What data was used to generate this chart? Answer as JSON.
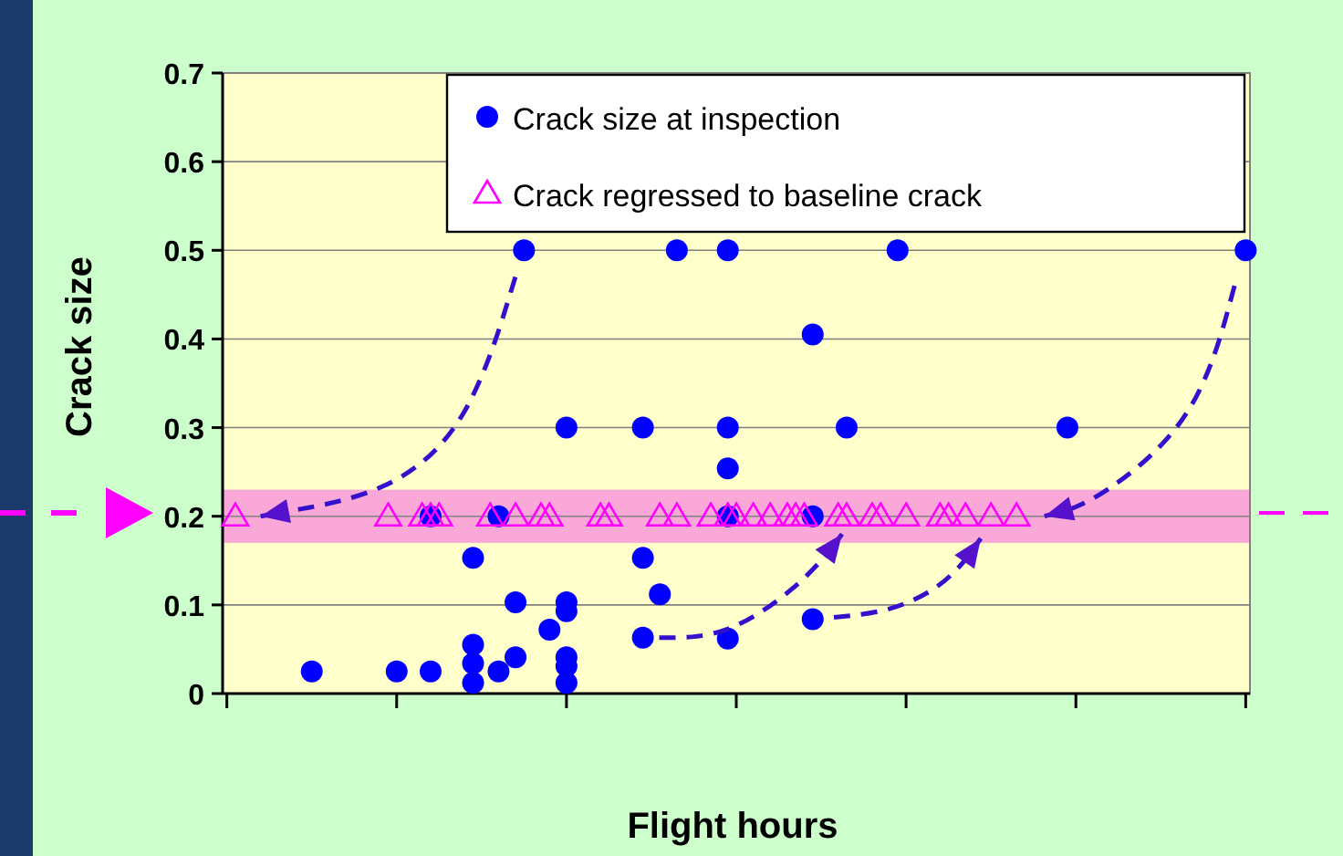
{
  "chart_data": {
    "type": "scatter",
    "xlabel": "Flight hours",
    "ylabel": "Crack size",
    "categories": [
      null,
      null,
      null,
      null,
      null,
      null,
      null,
      null,
      null,
      null,
      null,
      null,
      null,
      null,
      null,
      null,
      null,
      null,
      null,
      null,
      null,
      null,
      null,
      null,
      null,
      null,
      null,
      null,
      null,
      null,
      null,
      null,
      null,
      null,
      null,
      null,
      null,
      null,
      null,
      null,
      null,
      null,
      null,
      null,
      null,
      null,
      null,
      null,
      null,
      null,
      null,
      null,
      null,
      null,
      null,
      null,
      null,
      null,
      null,
      null,
      null,
      null,
      null,
      null,
      null,
      null,
      null,
      null,
      null,
      null,
      null,
      null,
      null,
      null,
      null,
      null,
      null,
      null,
      null,
      null,
      null,
      null,
      null,
      null,
      null,
      null,
      null,
      null,
      null,
      null,
      null,
      null,
      null,
      null,
      null,
      null,
      null,
      null,
      null,
      null,
      null,
      null,
      null,
      null,
      null,
      null,
      null,
      null,
      null,
      null,
      null,
      null,
      null,
      null,
      null,
      null,
      null,
      null,
      null,
      null,
      null
    ],
    "ylim": [
      0,
      0.7
    ],
    "yticks": [
      0,
      0.1,
      0.2,
      0.3,
      0.4,
      0.5,
      0.6,
      0.7
    ],
    "grid": "y",
    "legend": "top right",
    "bands": [
      {
        "axis": "y",
        "from": 0.17,
        "to": 0.23,
        "color": "#f9a8d8"
      }
    ],
    "series": [
      {
        "name": "Crack size at inspection",
        "color": "#0000ff",
        "marker": "circle",
        "values": [
          null,
          null,
          null,
          null,
          null,
          null,
          null,
          null,
          null,
          null,
          0.025,
          null,
          null,
          null,
          null,
          null,
          null,
          null,
          null,
          null,
          0.025,
          null,
          null,
          null,
          0.025,
          null,
          null,
          null,
          null,
          0.153,
          null,
          null,
          0.025,
          null,
          0.103,
          0.5,
          null,
          null,
          0.072,
          null,
          0.3,
          null,
          null,
          null,
          null,
          null,
          null,
          null,
          null,
          0.3,
          null,
          0.112,
          null,
          0.5,
          null,
          null,
          null,
          null,
          null,
          0.5,
          null,
          null,
          null,
          null,
          null,
          null,
          null,
          null,
          null,
          0.405,
          null,
          null,
          null,
          0.3,
          null,
          null,
          null,
          null,
          null,
          0.5,
          null,
          null,
          null,
          null,
          null,
          null,
          null,
          null,
          null,
          null,
          null,
          null,
          null,
          null,
          null,
          null,
          null,
          null,
          null,
          0.3,
          null,
          null,
          null,
          null,
          null,
          null,
          null,
          null,
          null,
          null,
          null,
          null,
          null,
          null,
          null,
          null,
          null,
          null,
          null,
          null,
          0.5
        ]
      },
      {
        "color": "#0000ff",
        "marker": "circle",
        "values": [
          null,
          null,
          null,
          null,
          null,
          null,
          null,
          null,
          null,
          null,
          null,
          null,
          null,
          null,
          null,
          null,
          null,
          null,
          null,
          null,
          null,
          null,
          null,
          null,
          0.2,
          null,
          null,
          null,
          null,
          0.055,
          null,
          null,
          0.2,
          null,
          0.041,
          null,
          null,
          null,
          null,
          null,
          0.103,
          null,
          null,
          null,
          null,
          null,
          null,
          null,
          null,
          0.153,
          null,
          null,
          null,
          null,
          null,
          null,
          null,
          null,
          null,
          0.3,
          null,
          null,
          null,
          null,
          null,
          null,
          null,
          null,
          null,
          0.084,
          null,
          null,
          null,
          null,
          null,
          null,
          null,
          null,
          null,
          null,
          null,
          null,
          null,
          null,
          null,
          null,
          null,
          null,
          null,
          null,
          null,
          null,
          null,
          null,
          null,
          null,
          null,
          null,
          null,
          null,
          null,
          null,
          null,
          null,
          null,
          null,
          null,
          null,
          null,
          null,
          null,
          null,
          null,
          null,
          null,
          null,
          null,
          null,
          null,
          null,
          null
        ]
      },
      {
        "color": "#0000ff",
        "marker": "circle",
        "values": [
          null,
          null,
          null,
          null,
          null,
          null,
          null,
          null,
          null,
          null,
          null,
          null,
          null,
          null,
          null,
          null,
          null,
          null,
          null,
          null,
          null,
          null,
          null,
          null,
          null,
          null,
          null,
          null,
          null,
          0.034,
          null,
          null,
          null,
          null,
          null,
          null,
          null,
          null,
          null,
          null,
          0.093,
          null,
          null,
          null,
          null,
          null,
          null,
          null,
          null,
          0.063,
          null,
          null,
          null,
          null,
          null,
          null,
          null,
          null,
          null,
          0.254,
          null,
          null,
          null,
          null,
          null,
          null,
          null,
          null,
          null,
          0.2,
          null,
          null,
          null,
          null,
          null,
          null,
          null,
          null,
          null,
          null,
          null,
          null,
          null,
          null,
          null,
          null,
          null,
          null,
          null,
          null,
          null,
          null,
          null,
          null,
          null,
          null,
          null,
          null,
          null,
          null,
          null,
          null,
          null,
          null,
          null,
          null,
          null,
          null,
          null,
          null,
          null,
          null,
          null,
          null,
          null,
          null,
          null,
          null,
          null,
          null,
          null
        ]
      },
      {
        "color": "#0000ff",
        "marker": "circle",
        "values": [
          null,
          null,
          null,
          null,
          null,
          null,
          null,
          null,
          null,
          null,
          null,
          null,
          null,
          null,
          null,
          null,
          null,
          null,
          null,
          null,
          null,
          null,
          null,
          null,
          null,
          null,
          null,
          null,
          null,
          0.012,
          null,
          null,
          null,
          null,
          null,
          null,
          null,
          null,
          null,
          null,
          0.041,
          null,
          null,
          null,
          null,
          null,
          null,
          null,
          null,
          null,
          null,
          null,
          null,
          null,
          null,
          null,
          null,
          null,
          null,
          0.062,
          null,
          null,
          null,
          null,
          null,
          null,
          null,
          null,
          null,
          null,
          null,
          null,
          null,
          null,
          null,
          null,
          null,
          null,
          null,
          null,
          null,
          null,
          null,
          null,
          null,
          null,
          null,
          null,
          null,
          null,
          null,
          null,
          null,
          null,
          null,
          null,
          null,
          null,
          null,
          null,
          null,
          null,
          null,
          null,
          null,
          null,
          null,
          null,
          null,
          null,
          null,
          null,
          null,
          null,
          null,
          null,
          null,
          null,
          null,
          null,
          null
        ]
      },
      {
        "color": "#0000ff",
        "marker": "circle",
        "values": [
          null,
          null,
          null,
          null,
          null,
          null,
          null,
          null,
          null,
          null,
          null,
          null,
          null,
          null,
          null,
          null,
          null,
          null,
          null,
          null,
          null,
          null,
          null,
          null,
          null,
          null,
          null,
          null,
          null,
          null,
          null,
          null,
          null,
          null,
          null,
          null,
          null,
          null,
          null,
          null,
          0.031,
          null,
          null,
          null,
          null,
          null,
          null,
          null,
          null,
          null,
          null,
          null,
          null,
          null,
          null,
          null,
          null,
          null,
          null,
          0.2,
          null,
          null,
          null,
          null,
          null,
          null,
          null,
          null,
          null,
          null,
          null,
          null,
          null,
          null,
          null,
          null,
          null,
          null,
          null,
          null,
          null,
          null,
          null,
          null,
          null,
          null,
          null,
          null,
          null,
          null,
          null,
          null,
          null,
          null,
          null,
          null,
          null,
          null,
          null,
          null,
          null,
          null,
          null,
          null,
          null,
          null,
          null,
          null,
          null,
          null,
          null,
          null,
          null,
          null,
          null,
          null,
          null,
          null,
          null,
          null,
          null
        ]
      },
      {
        "color": "#0000ff",
        "marker": "circle",
        "values": [
          null,
          null,
          null,
          null,
          null,
          null,
          null,
          null,
          null,
          null,
          null,
          null,
          null,
          null,
          null,
          null,
          null,
          null,
          null,
          null,
          null,
          null,
          null,
          null,
          null,
          null,
          null,
          null,
          null,
          null,
          null,
          null,
          null,
          null,
          null,
          null,
          null,
          null,
          null,
          null,
          0.012,
          null,
          null,
          null,
          null,
          null,
          null,
          null,
          null,
          null,
          null,
          null,
          null,
          null,
          null,
          null,
          null,
          null,
          null,
          null,
          null,
          null,
          null,
          null,
          null,
          null,
          null,
          null,
          null,
          null,
          null,
          null,
          null,
          null,
          null,
          null,
          null,
          null,
          null,
          null,
          null,
          null,
          null,
          null,
          null,
          null,
          null,
          null,
          null,
          null,
          null,
          null,
          null,
          null,
          null,
          null,
          null,
          null,
          null,
          null,
          null,
          null,
          null,
          null,
          null,
          null,
          null,
          null,
          null,
          null,
          null,
          null,
          null,
          null,
          null,
          null,
          null,
          null,
          null,
          null,
          null
        ]
      },
      {
        "name": "Crack regressed to baseline crack",
        "color": "#ff00ff",
        "marker": "triangle",
        "values": [
          null,
          0.2,
          null,
          null,
          null,
          null,
          null,
          null,
          null,
          null,
          null,
          null,
          null,
          null,
          null,
          null,
          null,
          null,
          null,
          0.2,
          null,
          null,
          null,
          0.2,
          0.2,
          0.2,
          null,
          null,
          null,
          null,
          null,
          0.2,
          null,
          null,
          0.2,
          null,
          null,
          0.2,
          0.2,
          null,
          null,
          null,
          null,
          null,
          0.2,
          0.2,
          null,
          null,
          null,
          null,
          null,
          0.2,
          null,
          0.2,
          null,
          null,
          null,
          0.2,
          null,
          0.2,
          0.2,
          null,
          0.2,
          null,
          0.2,
          null,
          0.2,
          0.2,
          0.2,
          null,
          null,
          null,
          0.2,
          0.2,
          null,
          null,
          0.2,
          0.2,
          null,
          null,
          0.2,
          null,
          null,
          null,
          0.2,
          0.2,
          null,
          0.2,
          null,
          null,
          0.2,
          null,
          null,
          0.2,
          null,
          null,
          null,
          null,
          null,
          null,
          null,
          null,
          null,
          null,
          null,
          null,
          null,
          null,
          null,
          null,
          null,
          null,
          null,
          null,
          null,
          null,
          null,
          null,
          null,
          null,
          null
        ]
      }
    ]
  }
}
